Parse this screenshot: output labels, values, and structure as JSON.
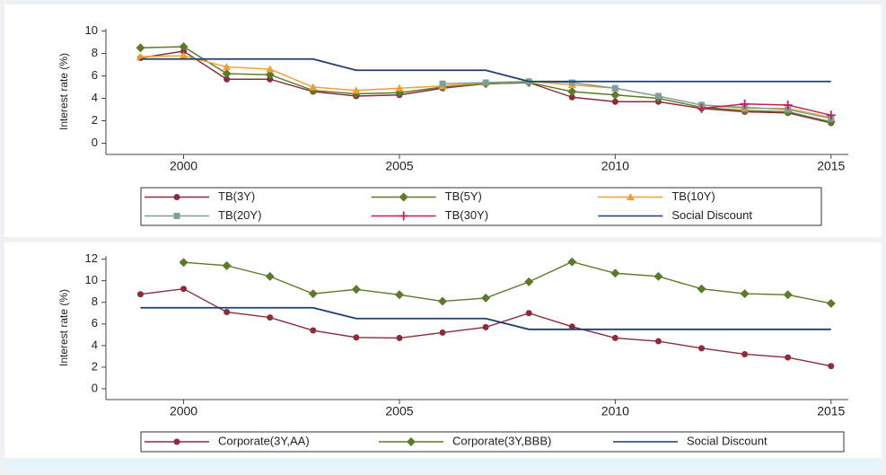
{
  "chart_data": [
    {
      "type": "line",
      "y_label": "Interest rate (%)",
      "x": [
        1999,
        2000,
        2001,
        2002,
        2003,
        2004,
        2005,
        2006,
        2007,
        2008,
        2009,
        2010,
        2011,
        2012,
        2013,
        2014,
        2015
      ],
      "xlim": [
        1998.2,
        2015.4
      ],
      "xticks": [
        2000,
        2005,
        2010,
        2015
      ],
      "ylim": [
        -1,
        10.2
      ],
      "yticks": [
        0,
        2,
        4,
        6,
        8,
        10
      ],
      "series": [
        {
          "name": "TB(3Y)",
          "color": "#8b2c3c",
          "marker": "circle",
          "values": [
            7.6,
            8.2,
            5.7,
            5.7,
            4.6,
            4.2,
            4.3,
            4.9,
            5.3,
            5.4,
            4.1,
            3.7,
            3.7,
            3.1,
            2.8,
            2.7,
            1.8
          ]
        },
        {
          "name": "TB(5Y)",
          "color": "#5c7a2a",
          "marker": "diamond",
          "values": [
            8.5,
            8.6,
            6.2,
            6.1,
            4.7,
            4.4,
            4.5,
            5.0,
            5.3,
            5.4,
            4.6,
            4.3,
            4.0,
            3.2,
            2.9,
            2.8,
            1.9
          ]
        },
        {
          "name": "TB(10Y)",
          "color": "#f0a030",
          "marker": "triangle",
          "values": [
            7.7,
            7.8,
            6.8,
            6.6,
            5.0,
            4.7,
            4.9,
            5.1,
            5.4,
            5.5,
            5.2,
            4.9,
            4.2,
            3.4,
            3.1,
            3.1,
            2.3
          ]
        },
        {
          "name": "TB(20Y)",
          "color": "#7fa09a",
          "marker": "square",
          "values": [
            null,
            null,
            null,
            null,
            null,
            null,
            null,
            5.3,
            5.4,
            5.5,
            5.4,
            4.9,
            4.2,
            3.4,
            3.2,
            3.0,
            2.2
          ]
        },
        {
          "name": "TB(30Y)",
          "color": "#c0205a",
          "marker": "plus",
          "values": [
            null,
            null,
            null,
            null,
            null,
            null,
            null,
            null,
            null,
            null,
            null,
            null,
            null,
            3.1,
            3.5,
            3.4,
            2.5
          ]
        },
        {
          "name": "Social Discount",
          "color": "#1f3f6e",
          "values": [
            7.5,
            7.5,
            7.5,
            7.5,
            7.5,
            6.5,
            6.5,
            6.5,
            6.5,
            5.5,
            5.5,
            5.5,
            5.5,
            5.5,
            5.5,
            5.5,
            5.5
          ]
        }
      ]
    },
    {
      "type": "line",
      "y_label": "Interest rate (%)",
      "x": [
        1999,
        2000,
        2001,
        2002,
        2003,
        2004,
        2005,
        2006,
        2007,
        2008,
        2009,
        2010,
        2011,
        2012,
        2013,
        2014,
        2015
      ],
      "xlim": [
        1998.2,
        2015.4
      ],
      "xticks": [
        2000,
        2005,
        2010,
        2015
      ],
      "ylim": [
        -1,
        12.3
      ],
      "yticks": [
        0,
        2,
        4,
        6,
        8,
        10,
        12
      ],
      "series": [
        {
          "name": "Corporate(3Y,AA)",
          "color": "#8b2c3c",
          "marker": "circle",
          "values": [
            8.75,
            9.25,
            7.1,
            6.6,
            5.4,
            4.75,
            4.7,
            5.2,
            5.7,
            7.0,
            5.75,
            4.7,
            4.4,
            3.75,
            3.2,
            2.9,
            2.1
          ]
        },
        {
          "name": "Corporate(3Y,BBB)",
          "color": "#5c7a2a",
          "marker": "diamond",
          "values": [
            null,
            11.7,
            11.4,
            10.4,
            8.8,
            9.2,
            8.7,
            8.1,
            8.4,
            9.9,
            11.75,
            10.7,
            10.4,
            9.25,
            8.8,
            8.7,
            7.9
          ]
        },
        {
          "name": "Social Discount",
          "color": "#1f3f6e",
          "values": [
            7.5,
            7.5,
            7.5,
            7.5,
            7.5,
            6.5,
            6.5,
            6.5,
            6.5,
            5.5,
            5.5,
            5.5,
            5.5,
            5.5,
            5.5,
            5.5,
            5.5
          ]
        }
      ]
    }
  ]
}
